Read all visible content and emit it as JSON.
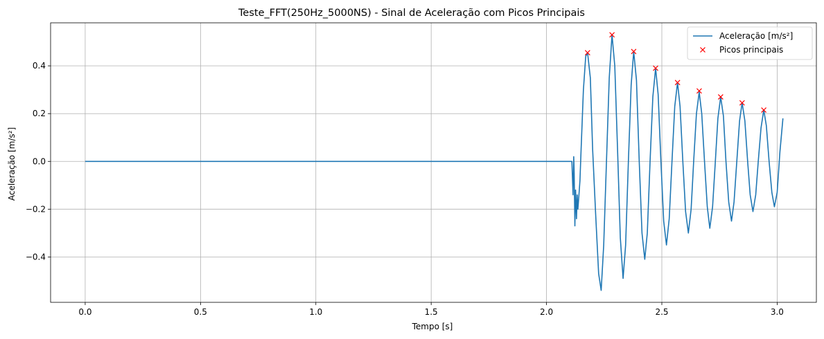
{
  "chart_data": {
    "type": "line",
    "title": "Teste_FFT(250Hz_5000NS) - Sinal de Aceleração com Picos Principais",
    "xlabel": "Tempo [s]",
    "ylabel": "Aceleração [m/s²]",
    "xlim": [
      -0.15,
      3.17
    ],
    "ylim": [
      -0.59,
      0.58
    ],
    "x_ticks": [
      0.0,
      0.5,
      1.0,
      1.5,
      2.0,
      2.5,
      3.0
    ],
    "x_tick_labels": [
      "0.0",
      "0.5",
      "1.0",
      "1.5",
      "2.0",
      "2.5",
      "3.0"
    ],
    "y_ticks": [
      -0.4,
      -0.2,
      0.0,
      0.2,
      0.4
    ],
    "y_tick_labels": [
      "−0.4",
      "−0.2",
      "0.0",
      "0.2",
      "0.4"
    ],
    "grid": true,
    "legend_position": "top-right",
    "series": [
      {
        "name": "Aceleração [m/s²]",
        "kind": "line",
        "color": "#1f77b4",
        "x": [
          0.0,
          2.1,
          2.11,
          2.115,
          2.118,
          2.12,
          2.123,
          2.126,
          2.13,
          2.133,
          2.136,
          2.14,
          2.145,
          2.15,
          2.16,
          2.17,
          2.178,
          2.19,
          2.2,
          2.213,
          2.226,
          2.237,
          2.248,
          2.26,
          2.272,
          2.284,
          2.296,
          2.308,
          2.32,
          2.332,
          2.343,
          2.355,
          2.367,
          2.378,
          2.39,
          2.402,
          2.414,
          2.426,
          2.437,
          2.449,
          2.461,
          2.473,
          2.484,
          2.496,
          2.508,
          2.52,
          2.532,
          2.544,
          2.556,
          2.568,
          2.579,
          2.591,
          2.603,
          2.615,
          2.627,
          2.638,
          2.65,
          2.662,
          2.673,
          2.685,
          2.697,
          2.708,
          2.72,
          2.732,
          2.743,
          2.755,
          2.767,
          2.778,
          2.79,
          2.802,
          2.813,
          2.825,
          2.837,
          2.848,
          2.86,
          2.872,
          2.883,
          2.895,
          2.907,
          2.918,
          2.93,
          2.942,
          2.953,
          2.965,
          2.977,
          2.988,
          3.0,
          3.012,
          3.025
        ],
        "y": [
          0.0,
          0.0,
          0.0,
          -0.14,
          0.02,
          -0.05,
          -0.27,
          -0.12,
          -0.24,
          -0.14,
          -0.2,
          -0.15,
          -0.08,
          0.05,
          0.3,
          0.44,
          0.455,
          0.35,
          0.05,
          -0.22,
          -0.47,
          -0.54,
          -0.35,
          0.0,
          0.35,
          0.53,
          0.4,
          0.05,
          -0.32,
          -0.49,
          -0.35,
          0.0,
          0.32,
          0.46,
          0.34,
          0.0,
          -0.3,
          -0.41,
          -0.3,
          0.0,
          0.27,
          0.39,
          0.28,
          0.0,
          -0.25,
          -0.35,
          -0.24,
          0.0,
          0.23,
          0.33,
          0.23,
          0.0,
          -0.21,
          -0.3,
          -0.2,
          0.0,
          0.2,
          0.29,
          0.2,
          0.0,
          -0.19,
          -0.28,
          -0.19,
          0.0,
          0.18,
          0.27,
          0.19,
          0.0,
          -0.17,
          -0.25,
          -0.17,
          0.0,
          0.17,
          0.245,
          0.17,
          0.0,
          -0.14,
          -0.21,
          -0.14,
          0.0,
          0.14,
          0.215,
          0.15,
          0.0,
          -0.13,
          -0.19,
          -0.13,
          0.04,
          0.18
        ]
      },
      {
        "name": "Picos principais",
        "kind": "marker",
        "marker": "x",
        "color": "#ff0000",
        "x": [
          2.178,
          2.284,
          2.378,
          2.473,
          2.568,
          2.662,
          2.755,
          2.848,
          2.942
        ],
        "y": [
          0.455,
          0.53,
          0.46,
          0.39,
          0.33,
          0.295,
          0.27,
          0.245,
          0.215
        ]
      }
    ]
  }
}
